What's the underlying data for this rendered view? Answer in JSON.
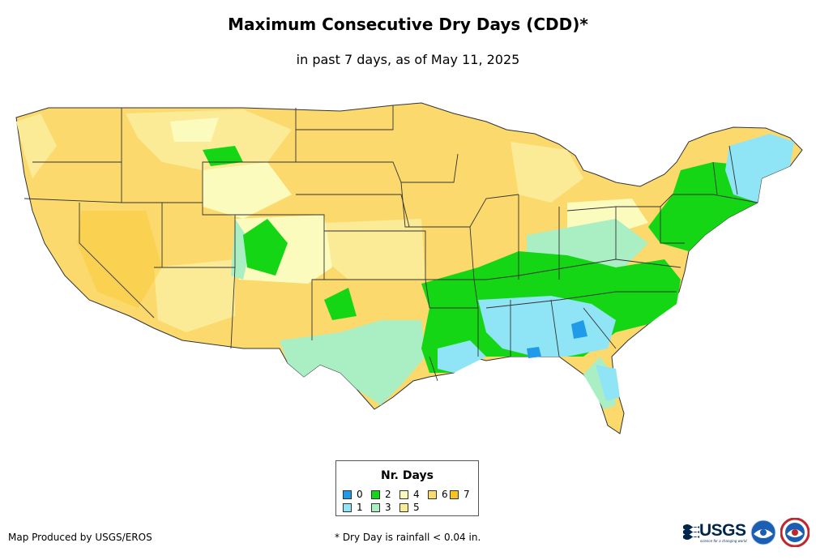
{
  "title": "Maximum Consecutive Dry Days (CDD)*",
  "subtitle": "in past 7 days, as of May 11, 2025",
  "legend": {
    "title": "Nr. Days",
    "items": [
      {
        "label": "0",
        "color": "#1f9bea"
      },
      {
        "label": "1",
        "color": "#8fe5f5"
      },
      {
        "label": "2",
        "color": "#14d614"
      },
      {
        "label": "3",
        "color": "#aaeec3"
      },
      {
        "label": "4",
        "color": "#fbfbbd"
      },
      {
        "label": "5",
        "color": "#fbeb96"
      },
      {
        "label": "6",
        "color": "#fbd96d"
      },
      {
        "label": "7",
        "color": "#fbc31f"
      }
    ]
  },
  "footer": {
    "producer": "Map Produced by USGS/EROS",
    "note": "* Dry Day is rainfall < 0.04 in."
  },
  "logos": {
    "usgs": "USGS",
    "usgs_tagline": "science for a changing world",
    "noaa": "noaa-logo",
    "nws": "nws-logo"
  }
}
